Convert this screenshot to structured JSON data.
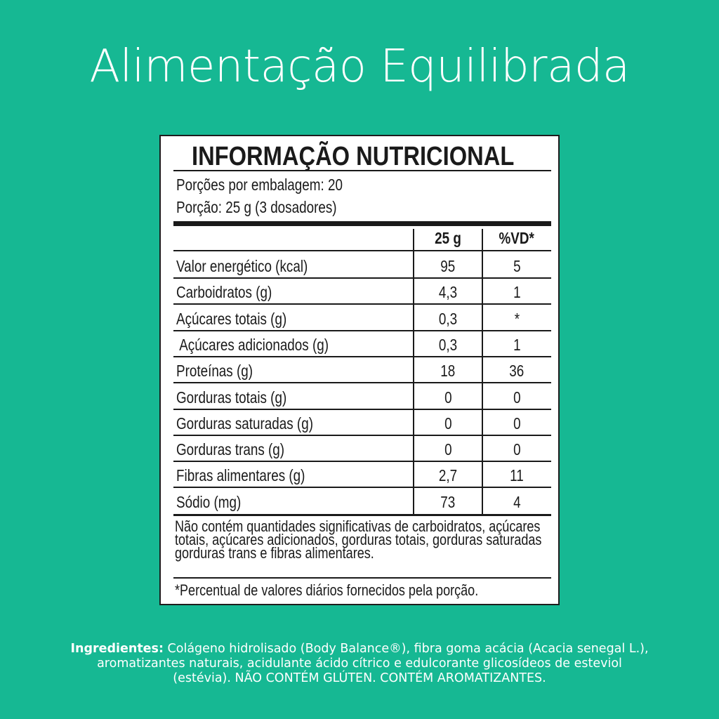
{
  "header": {
    "title": "Alimentação Equilibrada"
  },
  "label": {
    "heading": "INFORMAÇÃO NUTRICIONAL",
    "servings_per_package": "Porções por embalagem: 20",
    "serving_size": "Porção: 25 g (3 dosadores)",
    "columns": [
      "25 g",
      "%VD*"
    ],
    "rows": [
      {
        "name": "Valor energético (kcal)",
        "amount": "95",
        "dv": "5"
      },
      {
        "name": "Carboidratos (g)",
        "amount": "4,3",
        "dv": "1"
      },
      {
        "name": "Açúcares totais (g)",
        "amount": "0,3",
        "dv": "*"
      },
      {
        "name": " Açúcares adicionados (g)",
        "amount": "0,3",
        "dv": "1"
      },
      {
        "name": "Proteínas (g)",
        "amount": "18",
        "dv": "36"
      },
      {
        "name": "Gorduras totais (g)",
        "amount": "0",
        "dv": "0"
      },
      {
        "name": "Gorduras saturadas (g)",
        "amount": "0",
        "dv": "0"
      },
      {
        "name": "Gorduras trans (g)",
        "amount": "0",
        "dv": "0"
      },
      {
        "name": "Fibras alimentares (g)",
        "amount": "2,7",
        "dv": "11"
      },
      {
        "name": "Sódio (mg)",
        "amount": "73",
        "dv": "4"
      }
    ],
    "note_lines": [
      "Não contém quantidades significativas de carboidratos, açúcares",
      "totais, açúcares adicionados, gorduras totais, gorduras saturadas",
      "gorduras trans e fibras alimentares."
    ],
    "footnote": "*Percentual de valores diários fornecidos pela porção."
  },
  "ingredients": {
    "label": "Ingredientes:",
    "text": " Colágeno hidrolisado (Body Balance®), fibra goma acácia (Acacia senegal L.), aromatizantes naturais, acidulante ácido cítrico e edulcorante glicosídeos de esteviol (estévia). NÃO CONTÉM GLÚTEN. CONTÉM AROMATIZANTES."
  },
  "colors": {
    "background": "#16b893",
    "label_bg": "#ffffff",
    "text": "#1a1a1a"
  }
}
